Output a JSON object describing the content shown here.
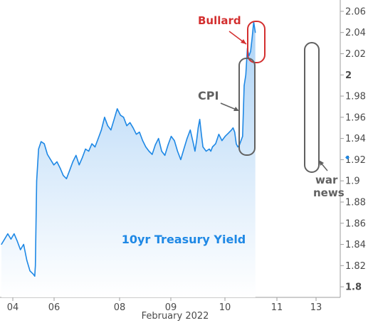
{
  "chart_data": {
    "type": "line",
    "title": "10yr Treasury Yield",
    "xlabel": "February 2022",
    "ylabel": "",
    "ylim": [
      1.79,
      2.068
    ],
    "xlim": [
      3.55,
      13.5
    ],
    "y_ticks": [
      "1.8",
      "1.82",
      "1.84",
      "1.86",
      "1.88",
      "1.9",
      "1.92",
      "1.94",
      "1.96",
      "1.98",
      "2",
      "2.02",
      "2.04",
      "2.06"
    ],
    "y_tick_values": [
      1.8,
      1.82,
      1.84,
      1.86,
      1.88,
      1.9,
      1.92,
      1.94,
      1.96,
      1.98,
      2.0,
      2.02,
      2.04,
      2.06
    ],
    "x_ticks": [
      "04",
      "06",
      "08",
      "09",
      "10",
      "11",
      "13"
    ],
    "x_tick_values": [
      3.75,
      5.1,
      6.4,
      7.35,
      8.4,
      9.4,
      10.2
    ],
    "series": [
      {
        "name": "10yr Treasury Yield",
        "color": "#1e88e5",
        "x": [
          3.55,
          3.65,
          3.75,
          3.85,
          3.95,
          4.05,
          4.15,
          4.25,
          4.35,
          4.45,
          4.55,
          4.6,
          4.62,
          4.66,
          4.72,
          4.8,
          4.9,
          5.0,
          5.1,
          5.2,
          5.3,
          5.4,
          5.5,
          5.6,
          5.7,
          5.8,
          5.9,
          6.0,
          6.1,
          6.2,
          6.3,
          6.4,
          6.5,
          6.6,
          6.7,
          6.8,
          6.9,
          7.0,
          7.1,
          7.2,
          7.3,
          7.4,
          7.5,
          7.6,
          7.7,
          7.8,
          7.9,
          8.0,
          8.1,
          8.2,
          8.3,
          8.4,
          8.5,
          8.6,
          8.7,
          8.8,
          8.9,
          9.0,
          9.1,
          9.2,
          9.3,
          9.4,
          9.5,
          9.6,
          9.65,
          9.7,
          9.75,
          9.8,
          9.85,
          9.9,
          10.0,
          10.1,
          10.15,
          10.2,
          10.3,
          10.4,
          10.5,
          10.6,
          10.7,
          10.8,
          10.85,
          10.9,
          10.95,
          11.0,
          11.05,
          11.1,
          11.15,
          11.2,
          11.25,
          11.3,
          11.35,
          11.4,
          11.45,
          11.5,
          11.55
        ],
        "y": [
          1.84,
          1.845,
          1.85,
          1.845,
          1.85,
          1.843,
          1.835,
          1.84,
          1.825,
          1.815,
          1.812,
          1.81,
          1.82,
          1.9,
          1.93,
          1.937,
          1.935,
          1.925,
          1.92,
          1.915,
          1.918,
          1.912,
          1.905,
          1.902,
          1.91,
          1.918,
          1.924,
          1.915,
          1.922,
          1.93,
          1.928,
          1.935,
          1.932,
          1.94,
          1.948,
          1.96,
          1.952,
          1.948,
          1.958,
          1.968,
          1.962,
          1.96,
          1.952,
          1.955,
          1.95,
          1.944,
          1.946,
          1.938,
          1.932,
          1.928,
          1.925,
          1.934,
          1.94,
          1.928,
          1.924,
          1.934,
          1.942,
          1.938,
          1.928,
          1.92,
          1.93,
          1.94,
          1.948,
          1.935,
          1.928,
          1.938,
          1.95,
          1.958,
          1.944,
          1.932,
          1.928,
          1.93,
          1.928,
          1.932,
          1.935,
          1.944,
          1.938,
          1.942,
          1.945,
          1.948,
          1.95,
          1.946,
          1.935,
          1.932,
          1.934,
          1.938,
          1.942,
          1.99,
          2.0,
          2.025,
          2.018,
          2.022,
          2.035,
          2.05,
          2.04
        ]
      }
    ],
    "y_extra_label": "1.92",
    "annotations": [
      {
        "text": "Bullard",
        "color": "#d32f2f"
      },
      {
        "text": "CPI",
        "color": "#616161"
      },
      {
        "text": "war",
        "color": "#616161"
      },
      {
        "text": "news",
        "color": "#616161"
      }
    ],
    "grid": false
  }
}
